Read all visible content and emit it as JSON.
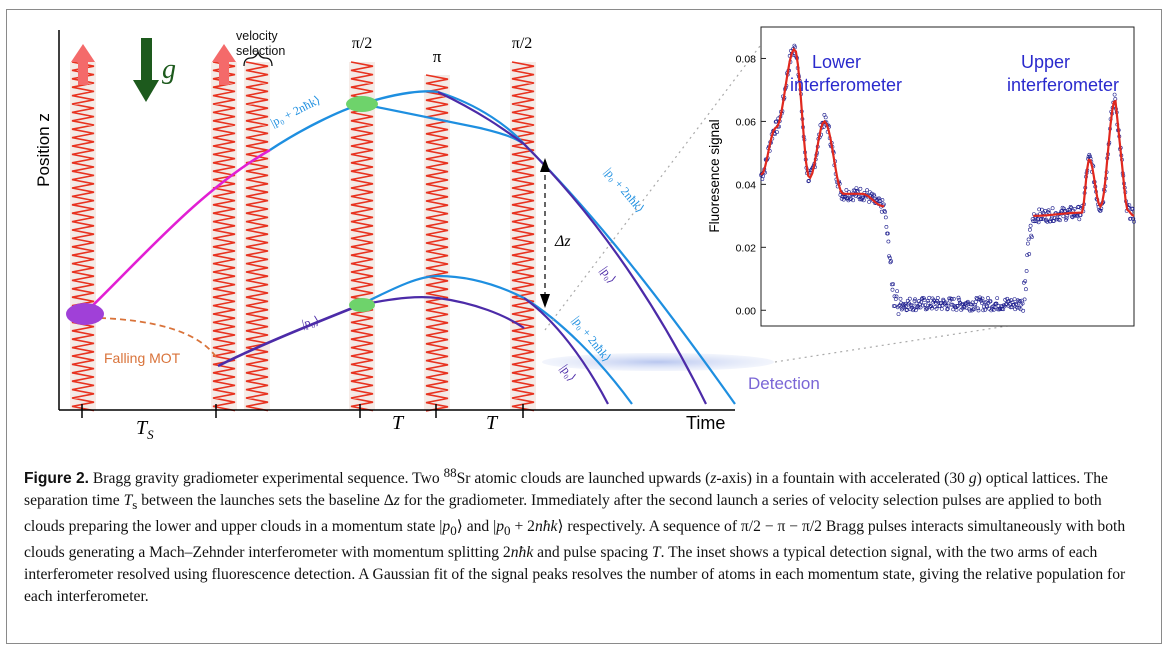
{
  "figure": {
    "axis_y_label": "Position z",
    "axis_x_label": "Time",
    "g_label": "g",
    "velocity_selection_label": [
      "velocity",
      "selection"
    ],
    "pulse_labels": [
      "π/2",
      "π",
      "π/2"
    ],
    "delta_z_label": "Δz",
    "falling_mot_label": "Falling MOT",
    "detection_label": "Detection",
    "time_labels": [
      "T",
      "T",
      "T"
    ],
    "time_label_subscript": "S",
    "state_labels": {
      "upper_p0_plus": "|p₀ + 2nħk⟩",
      "upper_right_p0_plus": "|p₀ + 2nħk⟩",
      "upper_right_p0": "|p₀⟩",
      "lower_p0": "|p₀⟩",
      "lower_right_p0_plus": "|p₀ + 2nħk⟩",
      "lower_right_p0": "|p₀⟩"
    },
    "colors": {
      "lattice": "#e8321f",
      "launch_arrow": "#f46a6a",
      "gravity_arrow": "#1d5a1d",
      "trajectory_magenta": "#e21fd3",
      "trajectory_dark": "#4c2ba8",
      "trajectory_light": "#1e8fe0",
      "cloud_purple": "#a040d8",
      "cloud_green": "#6ed36b",
      "mot_curve": "#d9733a",
      "detection": "#7a66d6"
    }
  },
  "inset": {
    "ylabel": "Fluoresence signal",
    "yticks": [
      "0.08",
      "0.06",
      "0.04",
      "0.02",
      "0.00"
    ],
    "title_left": [
      "Lower",
      "interferometer"
    ],
    "title_right": [
      "Upper",
      "interferometer"
    ],
    "chart_data": {
      "type": "scatter",
      "ylabel": "Fluoresence signal",
      "ylim": [
        -0.005,
        0.09
      ],
      "yticks": [
        0.0,
        0.02,
        0.04,
        0.06,
        0.08
      ],
      "grid": false,
      "series": [
        {
          "marker": "open-circle",
          "color": "#1a1a8c",
          "profile": [
            [
              0.0,
              0.043
            ],
            [
              0.04,
              0.058
            ],
            [
              0.09,
              0.083
            ],
            [
              0.13,
              0.042
            ],
            [
              0.17,
              0.06
            ],
            [
              0.22,
              0.037
            ],
            [
              0.27,
              0.037
            ],
            [
              0.33,
              0.033
            ],
            [
              0.36,
              0.002
            ],
            [
              0.7,
              0.002
            ],
            [
              0.73,
              0.03
            ],
            [
              0.86,
              0.031
            ],
            [
              0.88,
              0.048
            ],
            [
              0.91,
              0.033
            ],
            [
              0.95,
              0.067
            ],
            [
              0.98,
              0.032
            ],
            [
              1.0,
              0.03
            ]
          ]
        },
        {
          "color": "#e0281e"
        }
      ]
    }
  },
  "caption": {
    "label": "Figure 2.",
    "text": [
      {
        "t": " Bragg gravity gradiometer experimental sequence. Two "
      },
      {
        "t": "88",
        "sup": true
      },
      {
        "t": "Sr atomic clouds are launched upwards ("
      },
      {
        "t": "z",
        "i": true
      },
      {
        "t": "-axis) in a fountain with accelerated (30 "
      },
      {
        "t": "g",
        "i": true
      },
      {
        "t": ") optical lattices. The separation time "
      },
      {
        "t": "T",
        "i": true
      },
      {
        "t": "s",
        "sub": true
      },
      {
        "t": " between the launches sets the baseline Δ"
      },
      {
        "t": "z",
        "i": true
      },
      {
        "t": " for the gradiometer. Immediately after the second launch a series of velocity selection pulses are applied to both clouds preparing the lower and upper clouds in a momentum state |"
      },
      {
        "t": "p",
        "i": true
      },
      {
        "t": "0",
        "sub": true
      },
      {
        "t": "⟩ and |"
      },
      {
        "t": "p",
        "i": true
      },
      {
        "t": "0",
        "sub": true
      },
      {
        "t": " + 2"
      },
      {
        "t": "nħk",
        "i": true
      },
      {
        "t": "⟩ respectively. A sequence of π/2 − π − π/2 Bragg pulses interacts simultaneously with both clouds generating a Mach–Zehnder interferometer with momentum splitting 2"
      },
      {
        "t": "nħk",
        "i": true
      },
      {
        "t": " and pulse spacing "
      },
      {
        "t": "T",
        "i": true
      },
      {
        "t": ". The inset shows a typical detection signal, with the two arms of each interferometer resolved using fluorescence detection. A Gaussian fit of the signal peaks resolves the number of atoms in each momentum state, giving the relative population for each interferometer."
      }
    ]
  }
}
